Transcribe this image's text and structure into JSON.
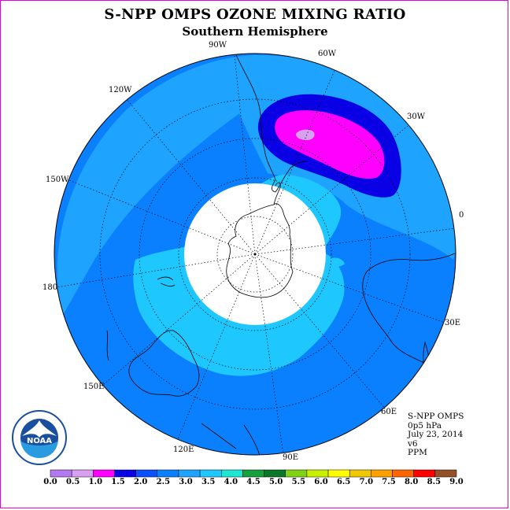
{
  "header": {
    "title": "S-NPP OMPS OZONE MIXING RATIO",
    "subtitle": "Southern Hemisphere"
  },
  "map": {
    "projection": "south polar stereographic",
    "longitude_labels": [
      "90W",
      "60W",
      "30W",
      "0",
      "30E",
      "60E",
      "90E",
      "120E",
      "150E",
      "180",
      "150W",
      "120W"
    ],
    "no_data_region": "south pole (polar night)",
    "fill_colors": {
      "background_2_0_2_5": "#0a80ff",
      "contour_2_5_3_0": "#1ea4ff",
      "contour_3_0_3_5": "#1ec8ff",
      "max_1_5_2_0": "#0a00e6",
      "max_1_0_1_5": "#ff00ff",
      "max_0_5_1_0": "#d7a0f0",
      "no_data": "#ffffff"
    }
  },
  "info": {
    "instrument": "S-NPP OMPS",
    "level": "0p5 hPa",
    "date": "July 23, 2014",
    "version": "v6",
    "units": "PPM"
  },
  "logo": {
    "text": "NOAA"
  },
  "colorbar": {
    "ticks": [
      "0.0",
      "0.5",
      "1.0",
      "1.5",
      "2.0",
      "2.5",
      "3.0",
      "3.5",
      "4.0",
      "4.5",
      "5.0",
      "5.5",
      "6.0",
      "6.5",
      "7.0",
      "7.5",
      "8.0",
      "8.5",
      "9.0"
    ],
    "colors": [
      "#b478f0",
      "#d7a0f0",
      "#ff00ff",
      "#0a00e6",
      "#0a50ff",
      "#0a80ff",
      "#1ea4ff",
      "#1ec8ff",
      "#1ee6d2",
      "#14a03c",
      "#0a7828",
      "#82d214",
      "#c8f000",
      "#ffff00",
      "#f0c800",
      "#ffa000",
      "#ff6400",
      "#ff0000",
      "#965028"
    ]
  }
}
